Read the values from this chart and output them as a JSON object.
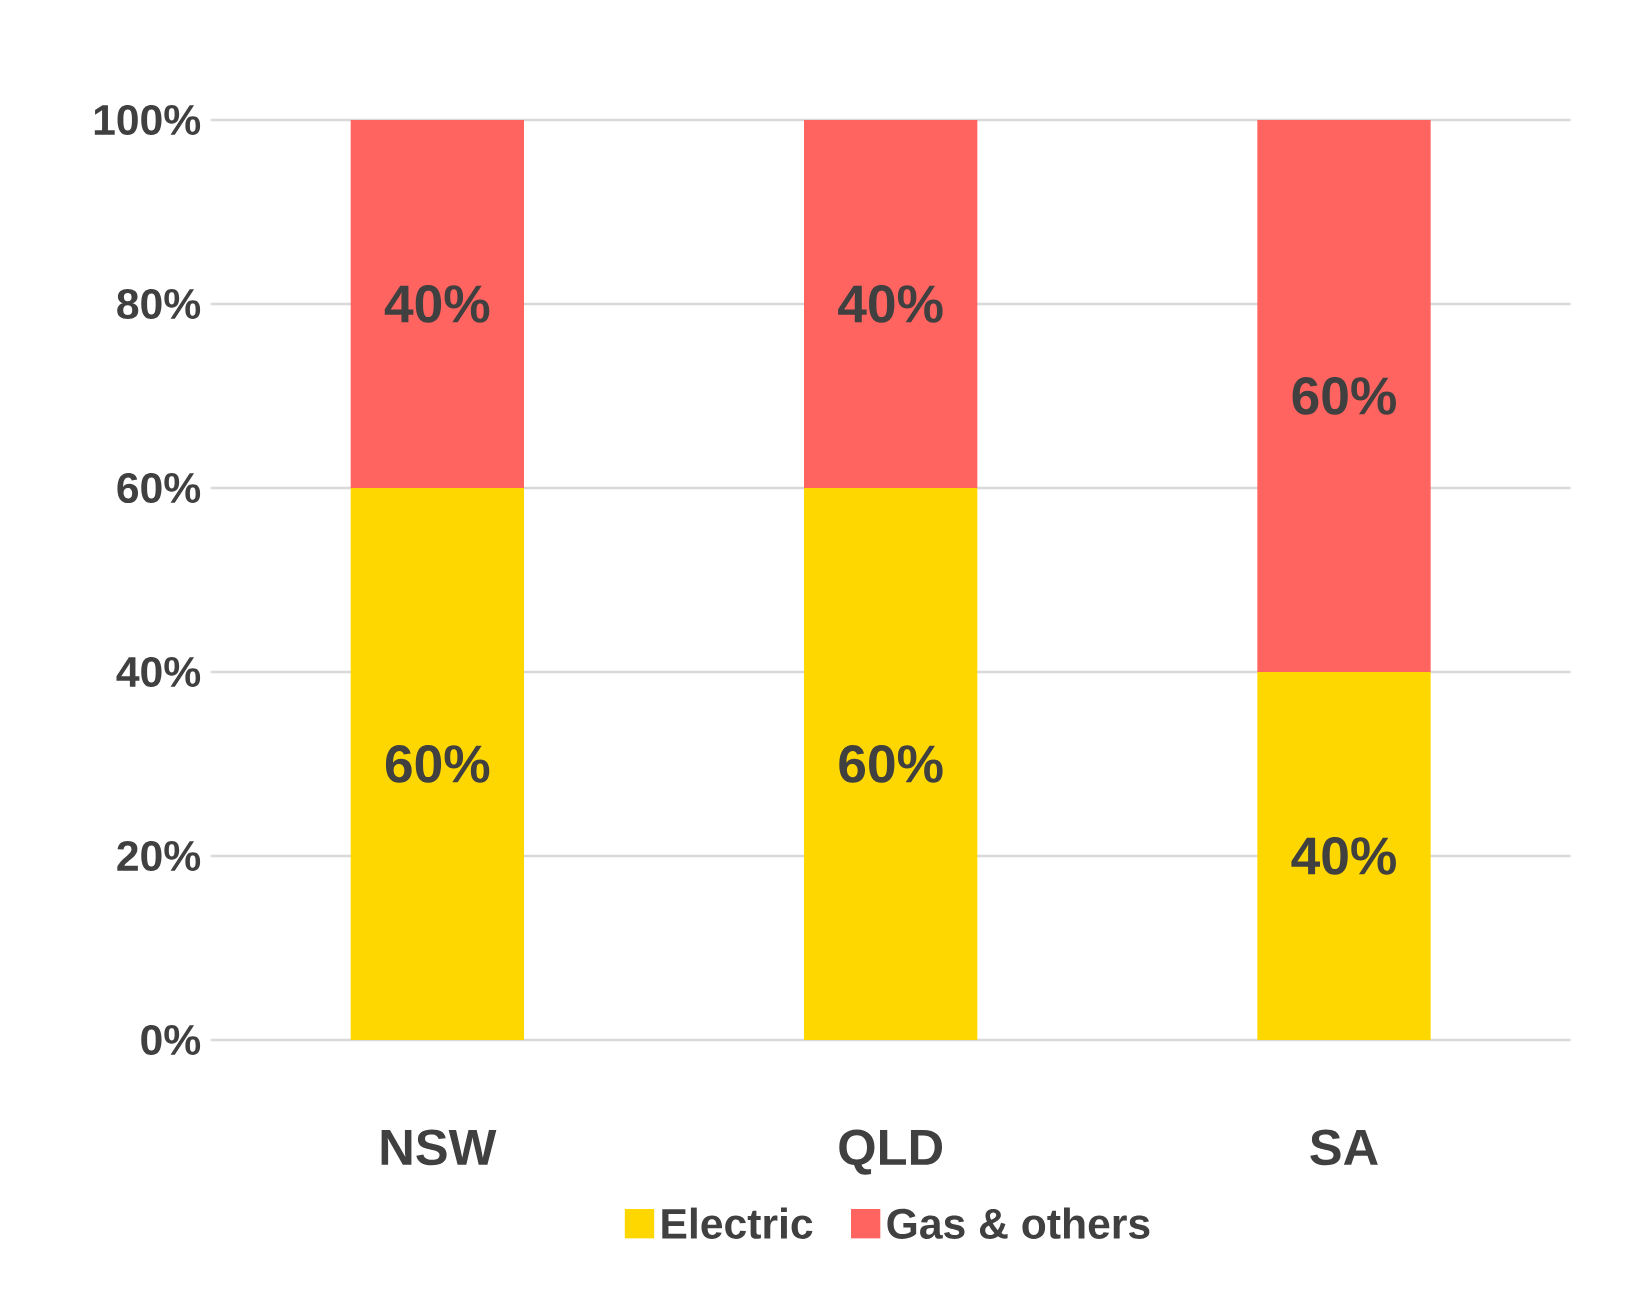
{
  "chart_data": {
    "type": "bar",
    "stacked": true,
    "categories": [
      "NSW",
      "QLD",
      "SA"
    ],
    "series": [
      {
        "name": "Electric",
        "color": "#ffd700",
        "values": [
          60,
          60,
          40
        ],
        "value_labels": [
          "60%",
          "60%",
          "40%"
        ]
      },
      {
        "name": "Gas & others",
        "color": "#ff6460",
        "values": [
          40,
          40,
          60
        ],
        "value_labels": [
          "40%",
          "40%",
          "60%"
        ]
      }
    ],
    "ylim": [
      0,
      100
    ],
    "yticks": [
      {
        "value": 0,
        "label": "0%"
      },
      {
        "value": 20,
        "label": "20%"
      },
      {
        "value": 40,
        "label": "40%"
      },
      {
        "value": 60,
        "label": "60%"
      },
      {
        "value": 80,
        "label": "80%"
      },
      {
        "value": 100,
        "label": "100%"
      }
    ],
    "grid": "y",
    "legend": "bottom"
  }
}
